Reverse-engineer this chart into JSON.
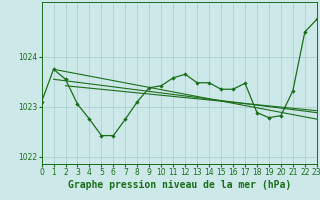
{
  "xlabel": "Graphe pression niveau de la mer (hPa)",
  "bg_color": "#cde8e8",
  "grid_color": "#aacccc",
  "line_color": "#1a6e1a",
  "x": [
    0,
    1,
    2,
    3,
    4,
    5,
    6,
    7,
    8,
    9,
    10,
    11,
    12,
    13,
    14,
    15,
    16,
    17,
    18,
    19,
    20,
    21,
    22,
    23
  ],
  "y_main": [
    1023.1,
    1023.75,
    1023.55,
    1023.05,
    1022.75,
    1022.42,
    1022.42,
    1022.75,
    1023.1,
    1023.38,
    1023.42,
    1023.58,
    1023.65,
    1023.48,
    1023.48,
    1023.35,
    1023.35,
    1023.47,
    1022.88,
    1022.78,
    1022.82,
    1023.32,
    1024.5,
    1024.75
  ],
  "trend_lines": [
    {
      "x": [
        1,
        23
      ],
      "y": [
        1023.75,
        1022.75
      ]
    },
    {
      "x": [
        1,
        23
      ],
      "y": [
        1023.55,
        1022.88
      ]
    },
    {
      "x": [
        2,
        23
      ],
      "y": [
        1023.42,
        1022.92
      ]
    }
  ],
  "ylim": [
    1021.85,
    1025.1
  ],
  "xlim": [
    0,
    23
  ],
  "yticks": [
    1022,
    1023,
    1024
  ],
  "xticks": [
    0,
    1,
    2,
    3,
    4,
    5,
    6,
    7,
    8,
    9,
    10,
    11,
    12,
    13,
    14,
    15,
    16,
    17,
    18,
    19,
    20,
    21,
    22,
    23
  ],
  "tick_fontsize": 5.5,
  "xlabel_fontsize": 7.0
}
